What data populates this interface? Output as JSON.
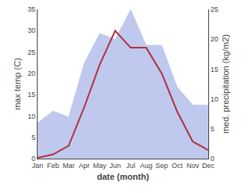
{
  "chart_data": {
    "type": "line",
    "categories": [
      "Jan",
      "Feb",
      "Mar",
      "Apr",
      "May",
      "Jun",
      "Jul",
      "Aug",
      "Sep",
      "Oct",
      "Nov",
      "Dec"
    ],
    "xlabel": "date (month)",
    "ylabel": "max temp (C)",
    "y2label": "med. precipitation (kg/m2)",
    "series": [
      {
        "type": "area",
        "color": "#bfc9ee",
        "axis": "y2",
        "values": [
          6.0,
          8.0,
          7.0,
          16.0,
          21.0,
          20.0,
          25.0,
          19.0,
          19.0,
          12.0,
          9.0,
          9.0
        ]
      },
      {
        "type": "line",
        "color": "#b03040",
        "values": [
          0.2,
          1.0,
          3.0,
          12.0,
          22.0,
          30.0,
          26.0,
          26.0,
          20.0,
          11.0,
          4.0,
          2.0
        ]
      }
    ],
    "ylim": [
      0,
      35
    ],
    "yticks": [
      0,
      5,
      10,
      15,
      20,
      25,
      30,
      35
    ],
    "y2lim": [
      0,
      25
    ],
    "y2ticks": [
      0,
      5,
      10,
      15,
      20,
      25
    ],
    "grid": false
  }
}
